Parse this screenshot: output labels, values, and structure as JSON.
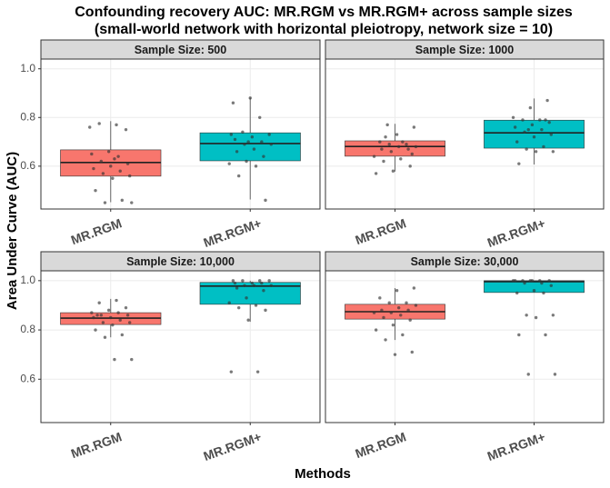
{
  "title_lines": [
    "Confounding recovery AUC: MR.RGM vs MR.RGM+ across sample sizes",
    "(small-world network with horizontal pleiotropy, network size = 10)"
  ],
  "xlabel": "Methods",
  "ylabel": "Area Under Curve (AUC)",
  "ylim": [
    0.424,
    1.04
  ],
  "yticks": [
    0.6,
    0.8,
    {
      "value": 1,
      "label": "1.0"
    }
  ],
  "chart_data": [
    {
      "type": "box",
      "title": "Sample Size: 500",
      "categories": [
        "MR.RGM",
        "MR.RGM+"
      ],
      "boxes": [
        {
          "color": "#F8766D",
          "min": 0.452,
          "q1": 0.559,
          "median": 0.615,
          "q3": 0.667,
          "max": 0.785,
          "points": [
            0.76,
            0.77,
            0.775,
            0.75,
            0.66,
            0.65,
            0.64,
            0.62,
            0.61,
            0.6,
            0.59,
            0.58,
            0.57,
            0.56,
            0.55,
            0.5,
            0.46,
            0.45,
            0.45,
            0.63
          ]
        },
        {
          "color": "#00BFC4",
          "min": 0.463,
          "q1": 0.622,
          "median": 0.693,
          "q3": 0.737,
          "max": 0.881,
          "points": [
            0.88,
            0.86,
            0.8,
            0.74,
            0.73,
            0.72,
            0.71,
            0.7,
            0.69,
            0.69,
            0.67,
            0.66,
            0.64,
            0.62,
            0.61,
            0.6,
            0.56,
            0.46,
            0.7,
            0.73
          ]
        }
      ]
    },
    {
      "type": "box",
      "title": "Sample Size: 1000",
      "categories": [
        "MR.RGM",
        "MR.RGM+"
      ],
      "boxes": [
        {
          "color": "#F8766D",
          "min": 0.578,
          "q1": 0.641,
          "median": 0.681,
          "q3": 0.704,
          "max": 0.774,
          "points": [
            0.77,
            0.76,
            0.73,
            0.7,
            0.69,
            0.69,
            0.68,
            0.68,
            0.67,
            0.67,
            0.66,
            0.64,
            0.63,
            0.62,
            0.6,
            0.58,
            0.57,
            0.7,
            0.72,
            0.65
          ]
        },
        {
          "color": "#00BFC4",
          "min": 0.607,
          "q1": 0.674,
          "median": 0.737,
          "q3": 0.789,
          "max": 0.878,
          "points": [
            0.87,
            0.84,
            0.8,
            0.79,
            0.79,
            0.78,
            0.77,
            0.76,
            0.75,
            0.74,
            0.73,
            0.72,
            0.7,
            0.68,
            0.67,
            0.66,
            0.66,
            0.61,
            0.79,
            0.75
          ]
        }
      ]
    },
    {
      "type": "box",
      "title": "Sample Size: 10,000",
      "categories": [
        "MR.RGM",
        "MR.RGM+"
      ],
      "boxes": [
        {
          "color": "#F8766D",
          "min": 0.77,
          "q1": 0.822,
          "median": 0.848,
          "q3": 0.87,
          "max": 0.926,
          "points": [
            0.92,
            0.91,
            0.89,
            0.88,
            0.87,
            0.87,
            0.86,
            0.86,
            0.85,
            0.85,
            0.84,
            0.83,
            0.83,
            0.82,
            0.8,
            0.78,
            0.77,
            0.68,
            0.68,
            0.86
          ]
        },
        {
          "color": "#00BFC4",
          "min": 0.833,
          "q1": 0.904,
          "median": 0.978,
          "q3": 0.993,
          "max": 1.0,
          "points": [
            1.0,
            1.0,
            1.0,
            1.0,
            0.99,
            0.99,
            0.99,
            0.98,
            0.98,
            0.98,
            0.97,
            0.96,
            0.93,
            0.91,
            0.9,
            0.89,
            0.88,
            0.84,
            0.63,
            0.63
          ]
        }
      ]
    },
    {
      "type": "box",
      "title": "Sample Size: 30,000",
      "categories": [
        "MR.RGM",
        "MR.RGM+"
      ],
      "boxes": [
        {
          "color": "#F8766D",
          "min": 0.759,
          "q1": 0.844,
          "median": 0.874,
          "q3": 0.904,
          "max": 0.97,
          "points": [
            0.97,
            0.96,
            0.93,
            0.91,
            0.91,
            0.9,
            0.89,
            0.88,
            0.88,
            0.87,
            0.87,
            0.86,
            0.85,
            0.84,
            0.82,
            0.8,
            0.78,
            0.76,
            0.71,
            0.7
          ]
        },
        {
          "color": "#00BFC4",
          "min": 0.952,
          "q1": 0.952,
          "median": 0.996,
          "q3": 1.0,
          "max": 1.0,
          "points": [
            1.0,
            1.0,
            1.0,
            1.0,
            1.0,
            1.0,
            1.0,
            0.99,
            0.99,
            0.98,
            0.96,
            0.95,
            0.95,
            0.86,
            0.86,
            0.85,
            0.78,
            0.78,
            0.62,
            0.62
          ]
        }
      ]
    }
  ]
}
